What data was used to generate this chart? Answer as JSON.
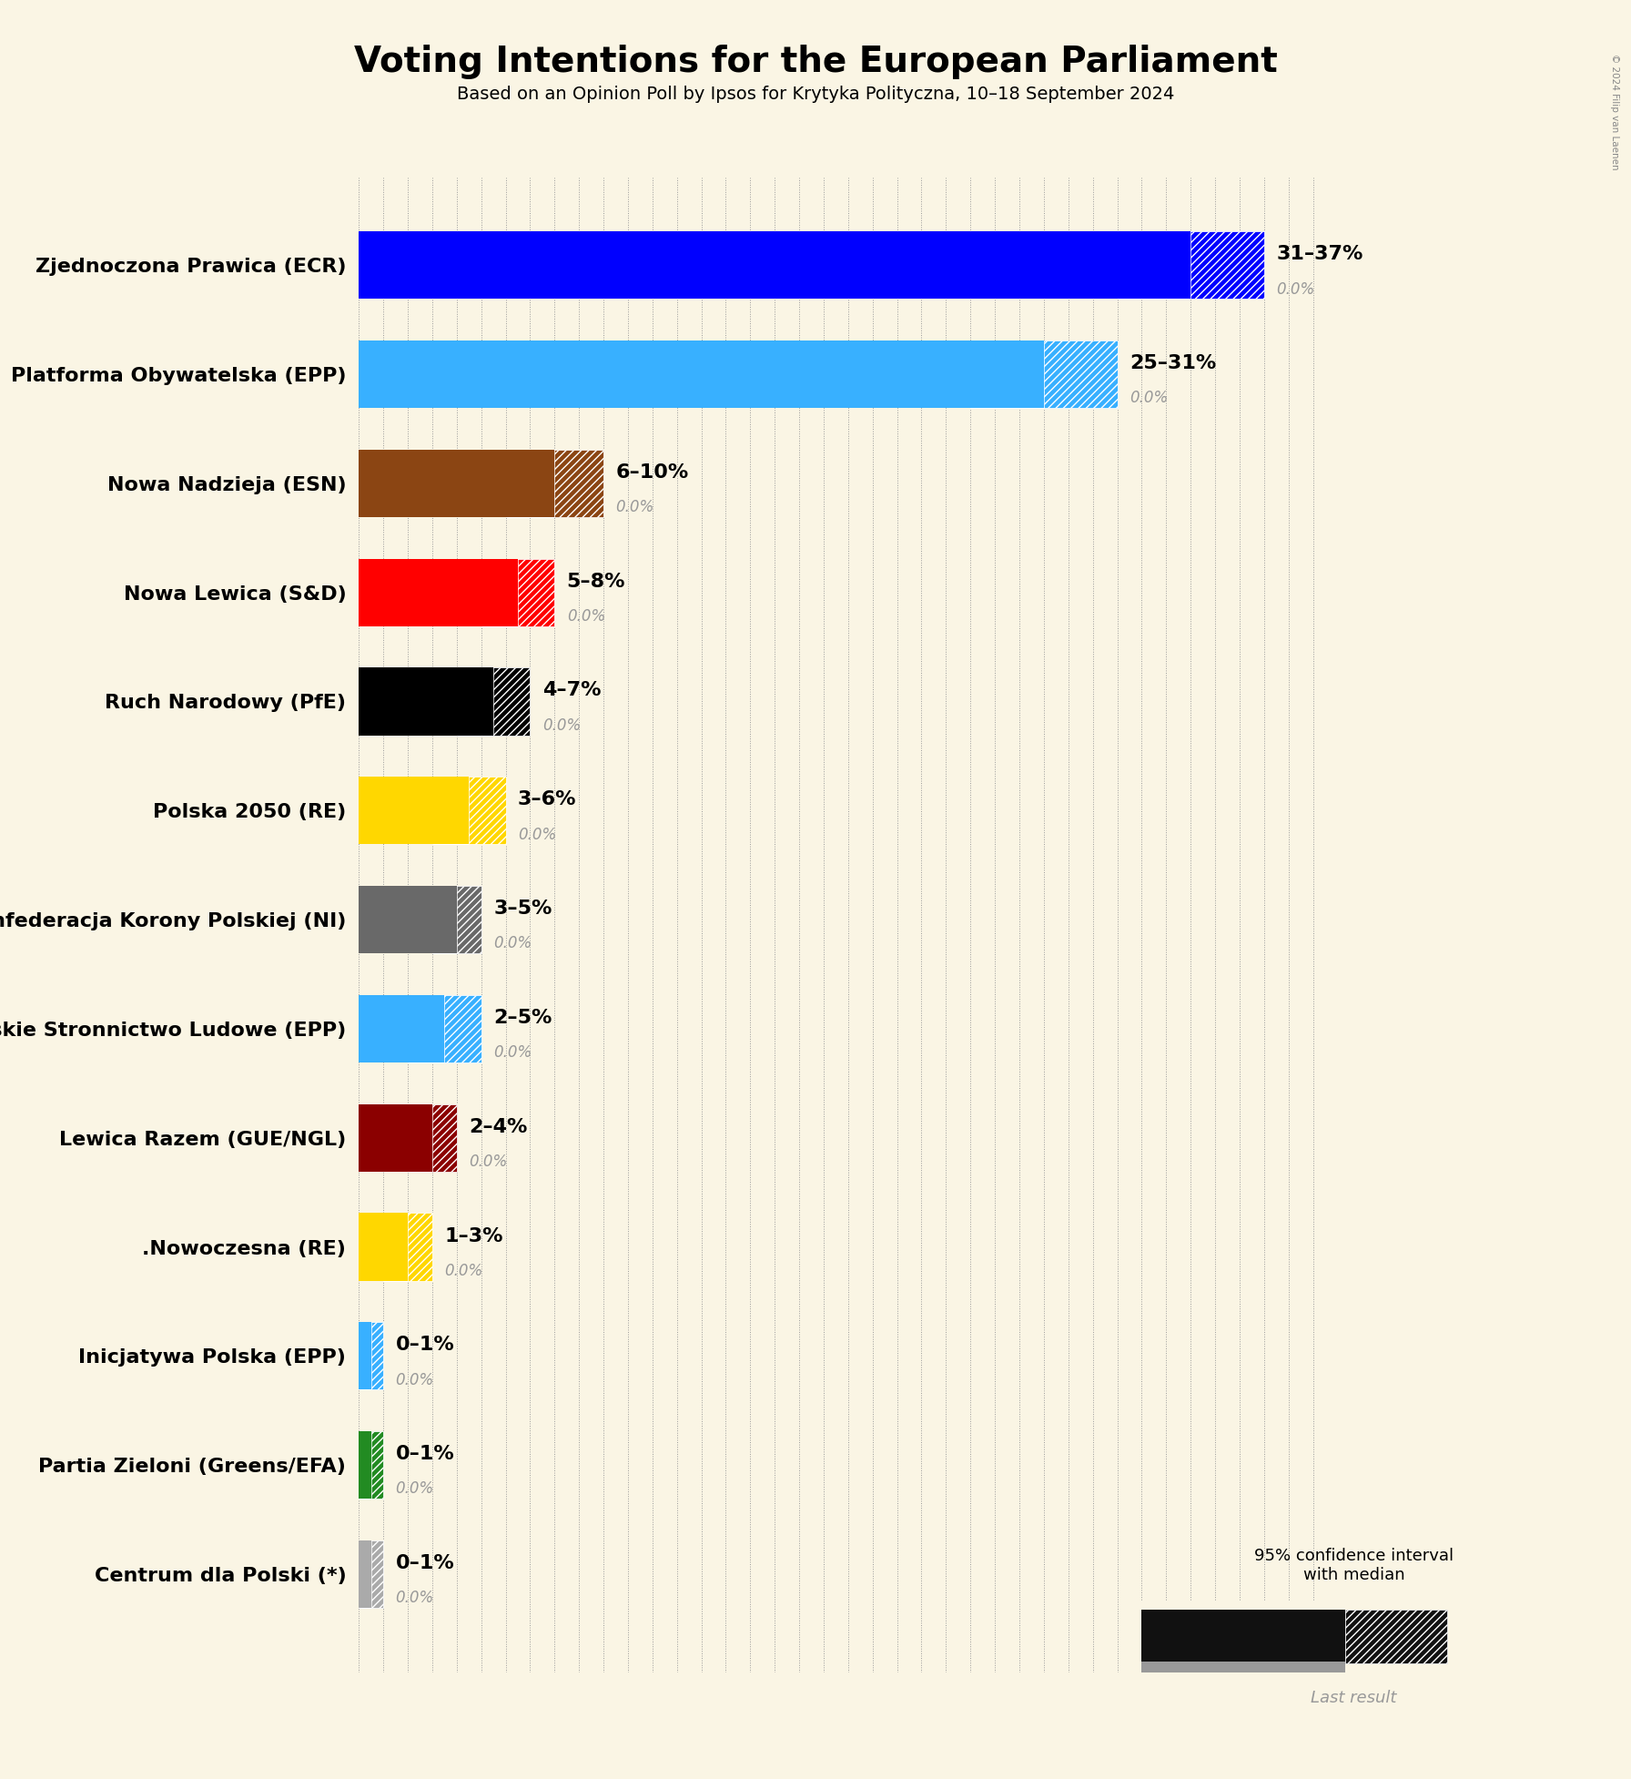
{
  "title": "Voting Intentions for the European Parliament",
  "subtitle": "Based on an Opinion Poll by Ipsos for Krytyka Polityczna, 10–18 September 2024",
  "copyright": "© 2024 Filip van Laenen",
  "background_color": "#faf5e4",
  "parties": [
    {
      "name": "Zjednoczona Prawica (ECR)",
      "median": 34,
      "low": 31,
      "high": 37,
      "last": 0.0,
      "color": "#0000ff",
      "label": "31–37%"
    },
    {
      "name": "Platforma Obywatelska (EPP)",
      "median": 28,
      "low": 25,
      "high": 31,
      "last": 0.0,
      "color": "#38b0ff",
      "label": "25–31%"
    },
    {
      "name": "Nowa Nadzieja (ESN)",
      "median": 8,
      "low": 6,
      "high": 10,
      "last": 0.0,
      "color": "#8b4513",
      "label": "6–10%"
    },
    {
      "name": "Nowa Lewica (S&D)",
      "median": 6.5,
      "low": 5,
      "high": 8,
      "last": 0.0,
      "color": "#ff0000",
      "label": "5–8%"
    },
    {
      "name": "Ruch Narodowy (PfE)",
      "median": 5.5,
      "low": 4,
      "high": 7,
      "last": 0.0,
      "color": "#000000",
      "label": "4–7%"
    },
    {
      "name": "Polska 2050 (RE)",
      "median": 4.5,
      "low": 3,
      "high": 6,
      "last": 0.0,
      "color": "#ffd700",
      "label": "3–6%"
    },
    {
      "name": "Konfederacja Korony Polskiej (NI)",
      "median": 4,
      "low": 3,
      "high": 5,
      "last": 0.0,
      "color": "#696969",
      "label": "3–5%"
    },
    {
      "name": "Polskie Stronnictwo Ludowe (EPP)",
      "median": 3.5,
      "low": 2,
      "high": 5,
      "last": 0.0,
      "color": "#38b0ff",
      "label": "2–5%"
    },
    {
      "name": "Lewica Razem (GUE/NGL)",
      "median": 3,
      "low": 2,
      "high": 4,
      "last": 0.0,
      "color": "#8b0000",
      "label": "2–4%"
    },
    {
      "name": ".Nowoczesna (RE)",
      "median": 2,
      "low": 1,
      "high": 3,
      "last": 0.0,
      "color": "#ffd700",
      "label": "1–3%"
    },
    {
      "name": "Inicjatywa Polska (EPP)",
      "median": 0.5,
      "low": 0,
      "high": 1,
      "last": 0.0,
      "color": "#38b0ff",
      "label": "0–1%"
    },
    {
      "name": "Partia Zieloni (Greens/EFA)",
      "median": 0.5,
      "low": 0,
      "high": 1,
      "last": 0.0,
      "color": "#228b22",
      "label": "0–1%"
    },
    {
      "name": "Centrum dla Polski (*)",
      "median": 0.5,
      "low": 0,
      "high": 1,
      "last": 0.0,
      "color": "#aaaaaa",
      "label": "0–1%"
    }
  ],
  "xlim": [
    0,
    40
  ],
  "grid_color": "#999999",
  "title_fontsize": 30,
  "subtitle_fontsize": 15,
  "bar_height": 0.62,
  "last_result_color": "#999999",
  "label_color": "#999999"
}
